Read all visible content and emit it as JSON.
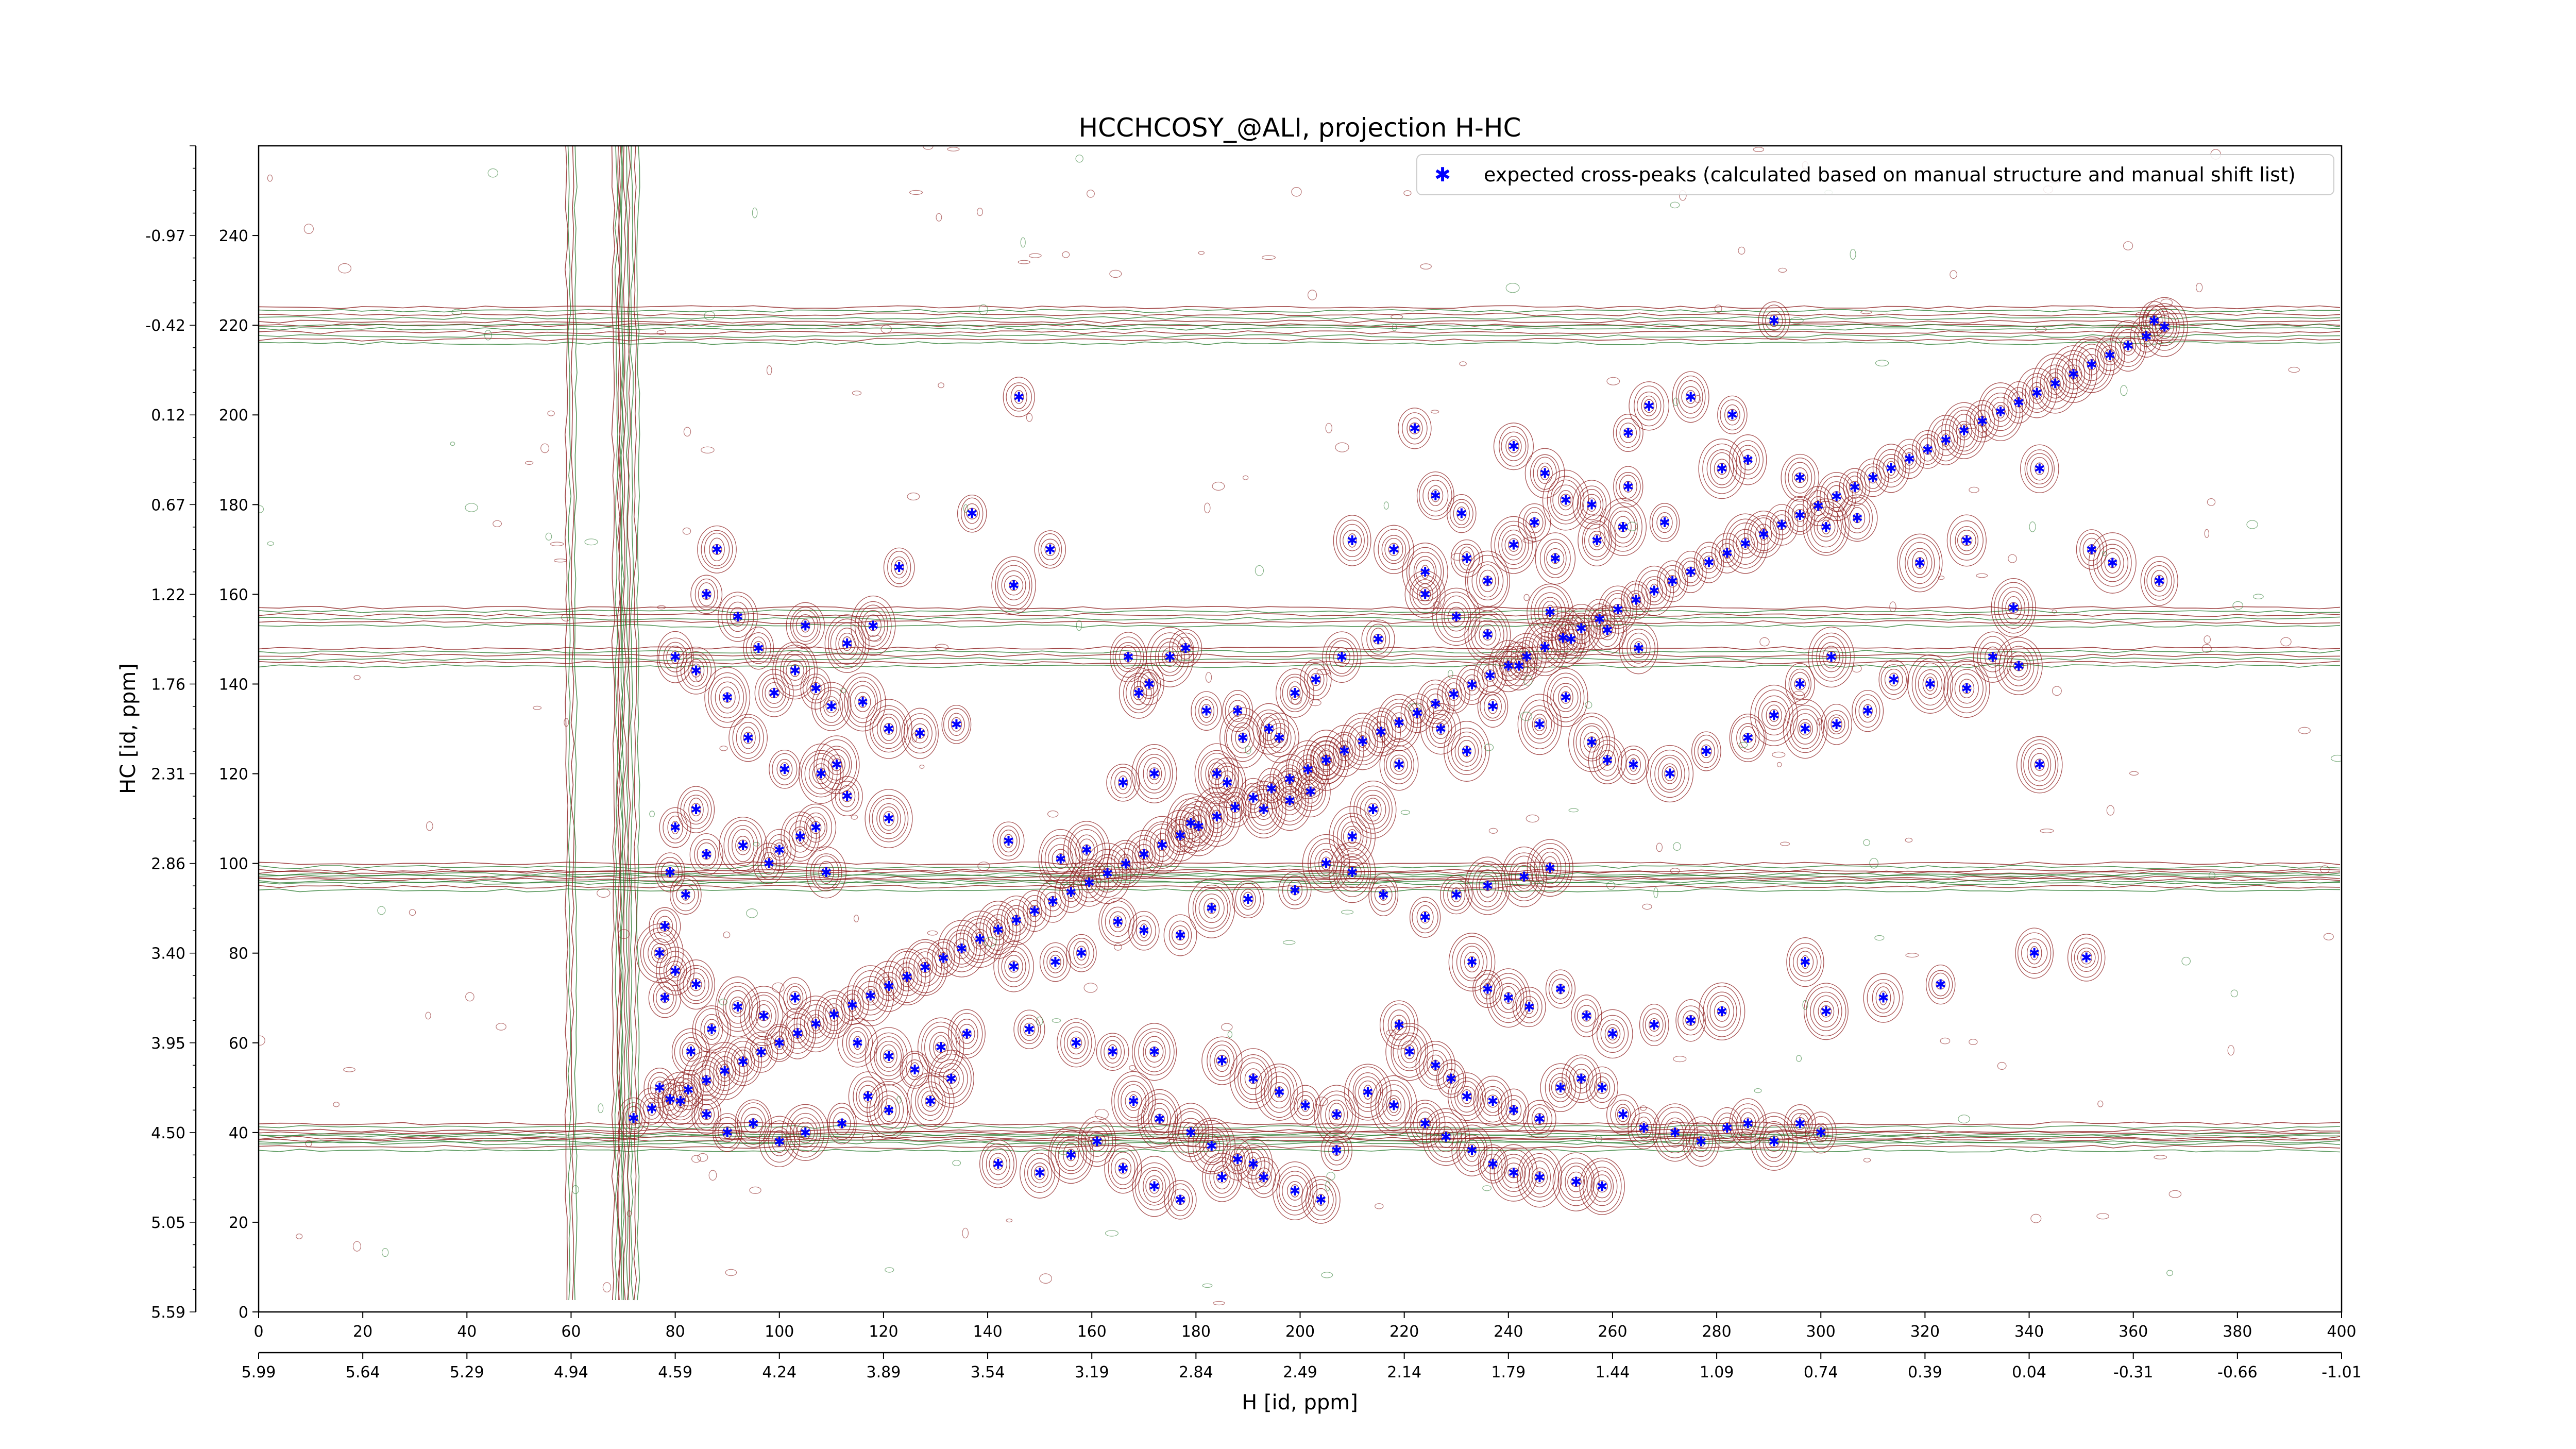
{
  "chart_data": {
    "type": "scatter",
    "title": "HCCHCOSY_@ALI, projection H-HC",
    "xlabel": "H [id, ppm]",
    "ylabel": "HC [id, ppm]",
    "xlim": [
      0,
      400
    ],
    "ylim": [
      0,
      260
    ],
    "grid": false,
    "legend_position": "top-right",
    "x_ticks": [
      "0",
      "20",
      "40",
      "60",
      "80",
      "100",
      "120",
      "140",
      "160",
      "180",
      "200",
      "220",
      "240",
      "260",
      "280",
      "300",
      "320",
      "340",
      "360",
      "380",
      "400"
    ],
    "x_ppm_ticks": [
      "5.99",
      "5.64",
      "5.29",
      "4.94",
      "4.59",
      "4.24",
      "3.89",
      "3.54",
      "3.19",
      "2.84",
      "2.49",
      "2.14",
      "1.79",
      "1.44",
      "1.09",
      "0.74",
      "0.39",
      "0.04",
      "-0.31",
      "-0.66",
      "-1.01"
    ],
    "y_ticks": [
      "0",
      "20",
      "40",
      "60",
      "80",
      "100",
      "120",
      "140",
      "160",
      "180",
      "200",
      "220",
      "240"
    ],
    "y_ppm_ticks": [
      "5.59",
      "5.05",
      "4.50",
      "3.95",
      "3.40",
      "2.86",
      "2.31",
      "1.76",
      "1.22",
      "0.67",
      "0.12",
      "-0.42",
      "-0.97"
    ],
    "series": [
      {
        "name": "expected cross-peaks (calculated based on manual structure and manual shift list)",
        "color": "#0000ff",
        "marker": "star",
        "diagonal_x_range": [
          72,
          366
        ],
        "off_diagonal_points": [
          [
            146,
            204
          ],
          [
            222,
            197
          ],
          [
            241,
            193
          ],
          [
            263,
            196
          ],
          [
            267,
            202
          ],
          [
            275,
            204
          ],
          [
            283,
            200
          ],
          [
            291,
            221
          ],
          [
            364,
            221
          ],
          [
            226,
            182
          ],
          [
            231,
            178
          ],
          [
            247,
            187
          ],
          [
            251,
            181
          ],
          [
            256,
            180
          ],
          [
            263,
            184
          ],
          [
            270,
            176
          ],
          [
            281,
            188
          ],
          [
            286,
            190
          ],
          [
            296,
            186
          ],
          [
            210,
            172
          ],
          [
            218,
            170
          ],
          [
            224,
            165
          ],
          [
            232,
            168
          ],
          [
            236,
            163
          ],
          [
            241,
            171
          ],
          [
            245,
            176
          ],
          [
            249,
            168
          ],
          [
            257,
            172
          ],
          [
            262,
            175
          ],
          [
            301,
            175
          ],
          [
            307,
            177
          ],
          [
            319,
            167
          ],
          [
            328,
            172
          ],
          [
            337,
            157
          ],
          [
            352,
            170
          ],
          [
            356,
            167
          ],
          [
            342,
            188
          ],
          [
            365,
            163
          ],
          [
            137,
            178
          ],
          [
            123,
            166
          ],
          [
            152,
            170
          ],
          [
            145,
            162
          ],
          [
            88,
            170
          ],
          [
            86,
            160
          ],
          [
            92,
            155
          ],
          [
            105,
            153
          ],
          [
            113,
            149
          ],
          [
            118,
            153
          ],
          [
            96,
            148
          ],
          [
            103,
            143
          ],
          [
            107,
            139
          ],
          [
            99,
            138
          ],
          [
            110,
            135
          ],
          [
            116,
            136
          ],
          [
            121,
            130
          ],
          [
            127,
            129
          ],
          [
            134,
            131
          ],
          [
            80,
            146
          ],
          [
            84,
            143
          ],
          [
            90,
            137
          ],
          [
            94,
            128
          ],
          [
            101,
            121
          ],
          [
            108,
            120
          ],
          [
            111,
            122
          ],
          [
            113,
            115
          ],
          [
            121,
            110
          ],
          [
            98,
            100
          ],
          [
            100,
            103
          ],
          [
            107,
            108
          ],
          [
            109,
            98
          ],
          [
            93,
            104
          ],
          [
            104,
            106
          ],
          [
            144,
            105
          ],
          [
            154,
            101
          ],
          [
            159,
            103
          ],
          [
            166,
            118
          ],
          [
            172,
            120
          ],
          [
            179,
            109
          ],
          [
            186,
            118
          ],
          [
            193,
            112
          ],
          [
            198,
            114
          ],
          [
            171,
            140
          ],
          [
            175,
            146
          ],
          [
            178,
            148
          ],
          [
            169,
            138
          ],
          [
            167,
            146
          ],
          [
            182,
            134
          ],
          [
            188,
            134
          ],
          [
            196,
            128
          ],
          [
            205,
            123
          ],
          [
            202,
            116
          ],
          [
            210,
            106
          ],
          [
            214,
            112
          ],
          [
            219,
            122
          ],
          [
            227,
            130
          ],
          [
            232,
            125
          ],
          [
            237,
            135
          ],
          [
            246,
            131
          ],
          [
            251,
            137
          ],
          [
            256,
            127
          ],
          [
            259,
            123
          ],
          [
            264,
            122
          ],
          [
            271,
            120
          ],
          [
            278,
            125
          ],
          [
            286,
            128
          ],
          [
            291,
            133
          ],
          [
            297,
            130
          ],
          [
            303,
            131
          ],
          [
            309,
            134
          ],
          [
            314,
            141
          ],
          [
            321,
            140
          ],
          [
            328,
            139
          ],
          [
            333,
            146
          ],
          [
            338,
            144
          ],
          [
            342,
            122
          ],
          [
            302,
            146
          ],
          [
            296,
            140
          ],
          [
            265,
            148
          ],
          [
            259,
            152
          ],
          [
            252,
            150
          ],
          [
            248,
            156
          ],
          [
            242,
            144
          ],
          [
            236,
            151
          ],
          [
            230,
            155
          ],
          [
            224,
            160
          ],
          [
            215,
            150
          ],
          [
            208,
            146
          ],
          [
            203,
            141
          ],
          [
            199,
            138
          ],
          [
            194,
            130
          ],
          [
            189,
            128
          ],
          [
            184,
            120
          ],
          [
            248,
            99
          ],
          [
            243,
            97
          ],
          [
            236,
            95
          ],
          [
            230,
            93
          ],
          [
            224,
            88
          ],
          [
            216,
            93
          ],
          [
            210,
            98
          ],
          [
            205,
            100
          ],
          [
            199,
            94
          ],
          [
            190,
            92
          ],
          [
            183,
            90
          ],
          [
            177,
            84
          ],
          [
            170,
            85
          ],
          [
            165,
            87
          ],
          [
            158,
            80
          ],
          [
            153,
            78
          ],
          [
            145,
            77
          ],
          [
            233,
            78
          ],
          [
            236,
            72
          ],
          [
            240,
            70
          ],
          [
            244,
            68
          ],
          [
            250,
            72
          ],
          [
            255,
            66
          ],
          [
            260,
            62
          ],
          [
            268,
            64
          ],
          [
            275,
            65
          ],
          [
            281,
            67
          ],
          [
            301,
            67
          ],
          [
            312,
            70
          ],
          [
            323,
            73
          ],
          [
            341,
            80
          ],
          [
            351,
            79
          ],
          [
            297,
            78
          ],
          [
            219,
            64
          ],
          [
            221,
            58
          ],
          [
            226,
            55
          ],
          [
            229,
            52
          ],
          [
            232,
            48
          ],
          [
            237,
            47
          ],
          [
            241,
            45
          ],
          [
            246,
            43
          ],
          [
            250,
            50
          ],
          [
            254,
            52
          ],
          [
            258,
            50
          ],
          [
            262,
            44
          ],
          [
            266,
            41
          ],
          [
            272,
            40
          ],
          [
            277,
            38
          ],
          [
            282,
            41
          ],
          [
            286,
            42
          ],
          [
            291,
            38
          ],
          [
            296,
            42
          ],
          [
            300,
            40
          ],
          [
            233,
            36
          ],
          [
            237,
            33
          ],
          [
            241,
            31
          ],
          [
            246,
            30
          ],
          [
            253,
            29
          ],
          [
            258,
            28
          ],
          [
            185,
            56
          ],
          [
            191,
            52
          ],
          [
            196,
            49
          ],
          [
            201,
            46
          ],
          [
            207,
            44
          ],
          [
            213,
            49
          ],
          [
            218,
            46
          ],
          [
            224,
            42
          ],
          [
            228,
            39
          ],
          [
            168,
            47
          ],
          [
            173,
            43
          ],
          [
            179,
            40
          ],
          [
            183,
            37
          ],
          [
            188,
            34
          ],
          [
            193,
            30
          ],
          [
            199,
            27
          ],
          [
            204,
            25
          ],
          [
            148,
            63
          ],
          [
            157,
            60
          ],
          [
            164,
            58
          ],
          [
            172,
            58
          ],
          [
            133,
            52
          ],
          [
            129,
            47
          ],
          [
            121,
            45
          ],
          [
            117,
            48
          ],
          [
            112,
            42
          ],
          [
            105,
            40
          ],
          [
            100,
            38
          ],
          [
            95,
            42
          ],
          [
            90,
            40
          ],
          [
            86,
            44
          ],
          [
            81,
            47
          ],
          [
            77,
            50
          ],
          [
            83,
            58
          ],
          [
            87,
            63
          ],
          [
            92,
            68
          ],
          [
            97,
            66
          ],
          [
            103,
            70
          ],
          [
            142,
            33
          ],
          [
            150,
            31
          ],
          [
            156,
            35
          ],
          [
            161,
            38
          ],
          [
            166,
            32
          ],
          [
            172,
            28
          ],
          [
            177,
            25
          ],
          [
            185,
            30
          ],
          [
            191,
            33
          ],
          [
            207,
            36
          ],
          [
            115,
            60
          ],
          [
            121,
            57
          ],
          [
            126,
            54
          ],
          [
            131,
            59
          ],
          [
            136,
            62
          ],
          [
            80,
            108
          ],
          [
            84,
            112
          ],
          [
            86,
            102
          ],
          [
            79,
            98
          ],
          [
            82,
            93
          ],
          [
            78,
            86
          ],
          [
            77,
            80
          ],
          [
            80,
            76
          ],
          [
            84,
            73
          ],
          [
            78,
            70
          ]
        ]
      }
    ],
    "contour_colors": {
      "positive": "#8b1a1a",
      "negative": "#2e7d32"
    },
    "artifact_rows_y": [
      38,
      40,
      96,
      98,
      146,
      155,
      218,
      222
    ],
    "artifact_cols_x": [
      60,
      69,
      70,
      72
    ]
  }
}
